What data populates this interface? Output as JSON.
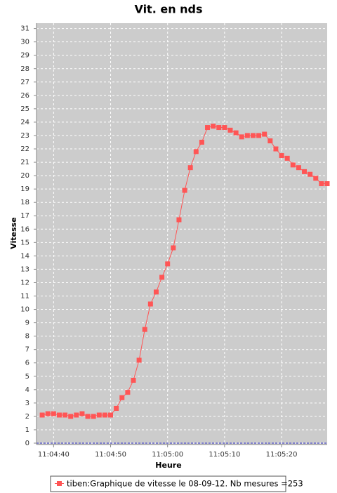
{
  "chart_data": {
    "type": "line",
    "title": "Vit. en nds",
    "x_label": "Heure",
    "y_label": "Vitesse",
    "x": [
      "11:04:38",
      "11:04:39",
      "11:04:40",
      "11:04:41",
      "11:04:42",
      "11:04:43",
      "11:04:44",
      "11:04:45",
      "11:04:46",
      "11:04:47",
      "11:04:48",
      "11:04:49",
      "11:04:50",
      "11:04:51",
      "11:04:52",
      "11:04:53",
      "11:04:54",
      "11:04:55",
      "11:04:56",
      "11:04:57",
      "11:04:58",
      "11:04:59",
      "11:05:00",
      "11:05:01",
      "11:05:02",
      "11:05:03",
      "11:05:04",
      "11:05:05",
      "11:05:06",
      "11:05:07",
      "11:05:08",
      "11:05:09",
      "11:05:10",
      "11:05:11",
      "11:05:12",
      "11:05:13",
      "11:05:14",
      "11:05:15",
      "11:05:16",
      "11:05:17",
      "11:05:18",
      "11:05:19",
      "11:05:20",
      "11:05:21",
      "11:05:22",
      "11:05:23",
      "11:05:24",
      "11:05:25",
      "11:05:26",
      "11:05:27",
      "11:05:28"
    ],
    "series": [
      {
        "name": "tiben:Graphique de vitesse le 08-09-12. Nb mesures =253",
        "color": "#ff5555",
        "values": [
          2.1,
          2.2,
          2.2,
          2.1,
          2.1,
          2.0,
          2.1,
          2.2,
          2.0,
          2.0,
          2.1,
          2.1,
          2.1,
          2.6,
          3.4,
          3.8,
          4.7,
          6.2,
          8.5,
          10.4,
          11.3,
          12.4,
          13.4,
          14.6,
          16.7,
          18.9,
          20.6,
          21.8,
          22.5,
          23.6,
          23.7,
          23.6,
          23.6,
          23.4,
          23.2,
          22.9,
          23.0,
          23.0,
          23.0,
          23.1,
          22.6,
          22.0,
          21.5,
          21.3,
          20.8,
          20.6,
          20.3,
          20.1,
          19.8,
          19.4,
          19.4
        ]
      }
    ],
    "xlim": [
      "11:04:37",
      "11:05:28"
    ],
    "xticks": [
      "11:04:40",
      "11:04:50",
      "11:05:00",
      "11:05:10",
      "11:05:20"
    ],
    "ylim": [
      0,
      31.4
    ],
    "yticks": [
      0,
      1,
      2,
      3,
      4,
      5,
      6,
      7,
      8,
      9,
      10,
      11,
      12,
      13,
      14,
      15,
      16,
      17,
      18,
      19,
      20,
      21,
      22,
      23,
      24,
      25,
      26,
      27,
      28,
      29,
      30,
      31
    ],
    "grid": true,
    "legend": "bottom",
    "background": "#cccccc"
  }
}
